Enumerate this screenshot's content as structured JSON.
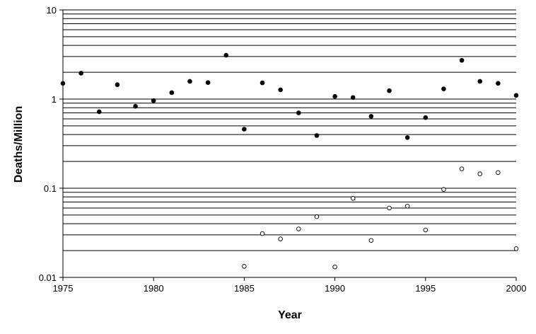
{
  "chart_data": {
    "type": "scatter",
    "title": "",
    "xlabel": "Year",
    "ylabel": "Deaths/Million",
    "xlim": [
      1975,
      2000
    ],
    "ylim": [
      0.01,
      10
    ],
    "y_scale": "log",
    "x_ticks": [
      "1975",
      "1980",
      "1985",
      "1990",
      "1995",
      "2000"
    ],
    "y_ticks": [
      "0.01",
      "0.1",
      "1",
      "10"
    ],
    "grid": "horizontal",
    "legend": "none",
    "series": [
      {
        "marker": "filled-circle",
        "color": "#000000",
        "x": [
          1975,
          1976,
          1977,
          1978,
          1979,
          1980,
          1981,
          1982,
          1983,
          1984,
          1985,
          1986,
          1987,
          1988,
          1989,
          1990,
          1991,
          1992,
          1993,
          1994,
          1995,
          1996,
          1997,
          1998,
          1999,
          2000
        ],
        "y": [
          1.5,
          1.95,
          0.72,
          1.45,
          0.83,
          0.96,
          1.18,
          1.58,
          1.53,
          3.1,
          0.46,
          1.52,
          1.27,
          0.7,
          0.39,
          1.07,
          1.04,
          0.64,
          1.24,
          0.37,
          0.62,
          1.3,
          2.72,
          1.58,
          1.5,
          1.1
        ]
      },
      {
        "marker": "open-circle",
        "color": "#000000",
        "x": [
          1985,
          1986,
          1987,
          1988,
          1989,
          1990,
          1991,
          1992,
          1993,
          1994,
          1995,
          1996,
          1997,
          1998,
          1999,
          2000
        ],
        "y": [
          0.0133,
          0.031,
          0.027,
          0.035,
          0.048,
          0.0131,
          0.077,
          0.026,
          0.06,
          0.063,
          0.034,
          0.097,
          0.165,
          0.145,
          0.15,
          0.021
        ]
      }
    ]
  }
}
